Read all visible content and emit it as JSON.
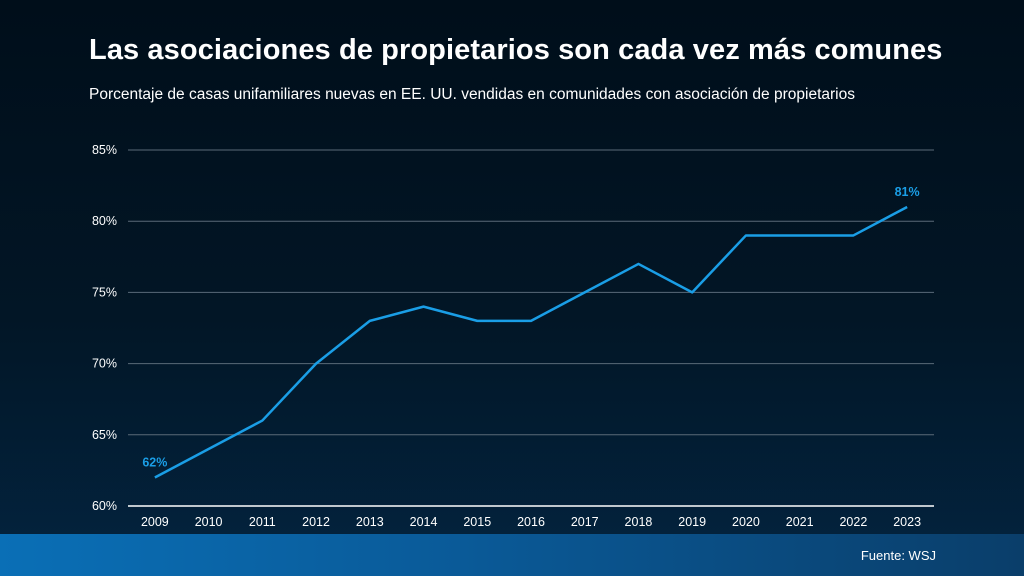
{
  "slide": {
    "title": "Las asociaciones de propietarios son cada vez más comunes",
    "subtitle": "Porcentaje de casas unifamiliares nuevas en EE. UU. vendidas en comunidades con asociación de propietarios",
    "source": "Fuente: WSJ"
  },
  "colors": {
    "line": "#1a9ee6",
    "label": "#1a9ee6",
    "grid": "#5a6a78",
    "axis": "#ffffff",
    "text": "#ffffff"
  },
  "chart_data": {
    "type": "line",
    "title": "Las asociaciones de propietarios son cada vez más comunes",
    "subtitle": "Porcentaje de casas unifamiliares nuevas en EE. UU. vendidas en comunidades con asociación de propietarios",
    "xlabel": "",
    "ylabel": "",
    "categories": [
      "2009",
      "2010",
      "2011",
      "2012",
      "2013",
      "2014",
      "2015",
      "2016",
      "2017",
      "2018",
      "2019",
      "2020",
      "2021",
      "2022",
      "2023"
    ],
    "values": [
      62,
      64,
      66,
      70,
      73,
      74,
      73,
      73,
      75,
      77,
      75,
      79,
      79,
      79,
      81
    ],
    "ylim": [
      60,
      85
    ],
    "yticks": [
      60,
      65,
      70,
      75,
      80,
      85
    ],
    "ytick_labels": [
      "60%",
      "65%",
      "70%",
      "75%",
      "80%",
      "85%"
    ],
    "grid": true,
    "legend": "none",
    "annotations": [
      {
        "index": 0,
        "text": "62%"
      },
      {
        "index": 14,
        "text": "81%"
      }
    ]
  }
}
